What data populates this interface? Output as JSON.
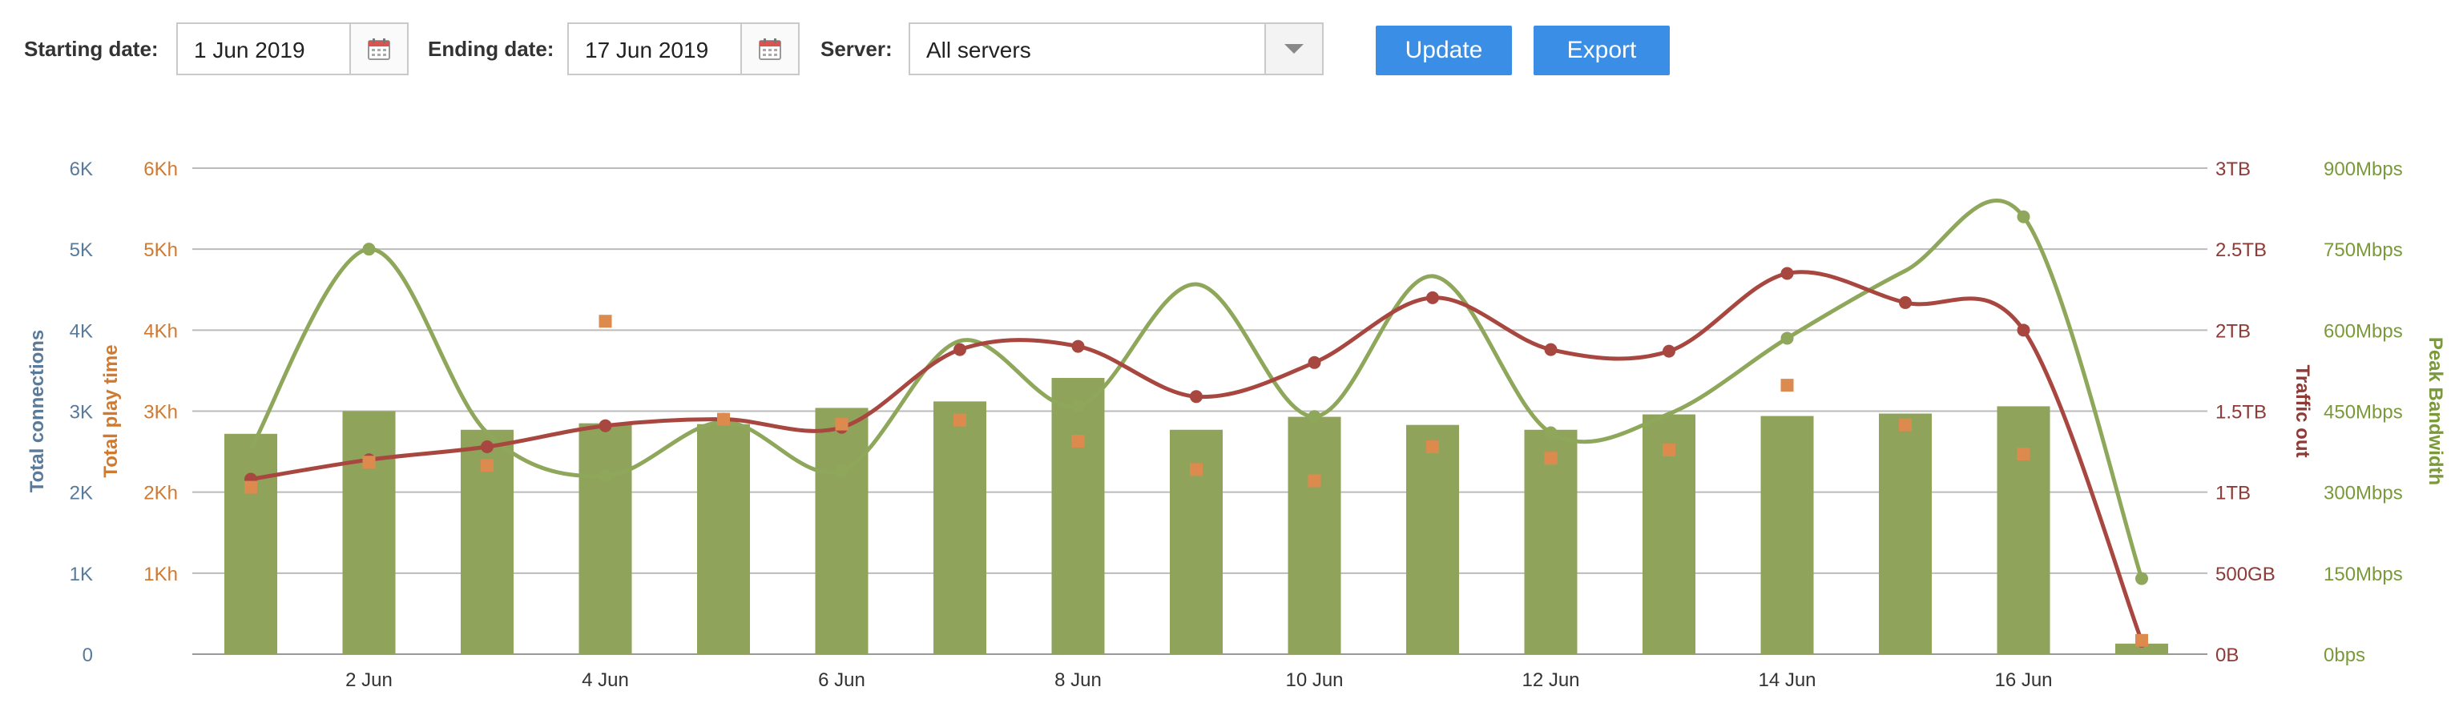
{
  "filters": {
    "start_label": "Starting date:",
    "start_value": "1 Jun 2019",
    "end_label": "Ending date:",
    "end_value": "17 Jun 2019",
    "server_label": "Server:",
    "server_value": "All servers",
    "update_label": "Update",
    "export_label": "Export"
  },
  "colors": {
    "connections": "#8fa45a",
    "playtime": "#dc8a4e",
    "traffic": "#a8473f",
    "bandwidth": "#8ea75a",
    "button": "#3a8ee6",
    "conn_axis": "#5a7a9a",
    "play_axis": "#d07a30",
    "traffic_axis": "#8e3a36",
    "bw_axis": "#7a9a3a",
    "calendar": "#d9534f",
    "grid": "#bbbbbb"
  },
  "icons": {
    "calendar": "calendar-icon",
    "dropdown": "chevron-down-icon"
  },
  "chart_data": {
    "type": "bar",
    "x_ticks": [
      "2 Jun",
      "4 Jun",
      "6 Jun",
      "8 Jun",
      "10 Jun",
      "12 Jun",
      "14 Jun",
      "16 Jun"
    ],
    "x_days": [
      1,
      2,
      3,
      4,
      5,
      6,
      7,
      8,
      9,
      10,
      11,
      12,
      13,
      14,
      15,
      16,
      17
    ],
    "grid": true,
    "axes": {
      "connections": {
        "label": "Total connections",
        "ticks": [
          "0",
          "1K",
          "2K",
          "3K",
          "4K",
          "5K",
          "6K"
        ],
        "range": [
          0,
          6000
        ]
      },
      "playtime": {
        "label": "Total play time",
        "ticks": [
          "1Kh",
          "2Kh",
          "3Kh",
          "4Kh",
          "5Kh",
          "6Kh"
        ],
        "range": [
          0,
          6000
        ]
      },
      "traffic": {
        "label": "Traffic out",
        "ticks": [
          "0B",
          "500GB",
          "1TB",
          "1.5TB",
          "2TB",
          "2.5TB",
          "3TB"
        ],
        "range": [
          0,
          3000
        ]
      },
      "bandwidth": {
        "label": "Peak Bandwidth",
        "ticks": [
          "0bps",
          "150Mbps",
          "300Mbps",
          "450Mbps",
          "600Mbps",
          "750Mbps",
          "900Mbps"
        ],
        "range": [
          0,
          900
        ]
      }
    },
    "series": [
      {
        "type": "bar",
        "axis": "connections",
        "values": [
          2720,
          3000,
          2770,
          2850,
          2840,
          3040,
          3120,
          3410,
          2770,
          2930,
          2830,
          2770,
          2960,
          2940,
          2970,
          3060,
          130
        ]
      },
      {
        "type": "scatter",
        "axis": "playtime",
        "values": [
          2060,
          2370,
          2330,
          4110,
          2900,
          2840,
          2890,
          2630,
          2280,
          2140,
          2560,
          2420,
          2520,
          3320,
          2830,
          2470,
          170
        ]
      },
      {
        "type": "line",
        "axis": "traffic",
        "values": [
          1080,
          1200,
          1280,
          1410,
          1450,
          1400,
          1880,
          1900,
          1590,
          1800,
          2200,
          1880,
          1870,
          2350,
          2170,
          2000,
          80
        ]
      },
      {
        "type": "line",
        "axis": "bandwidth",
        "values": [
          380,
          750,
          410,
          330,
          430,
          340,
          580,
          460,
          685,
          440,
          700,
          410,
          445,
          585,
          710,
          810,
          140
        ]
      }
    ]
  }
}
